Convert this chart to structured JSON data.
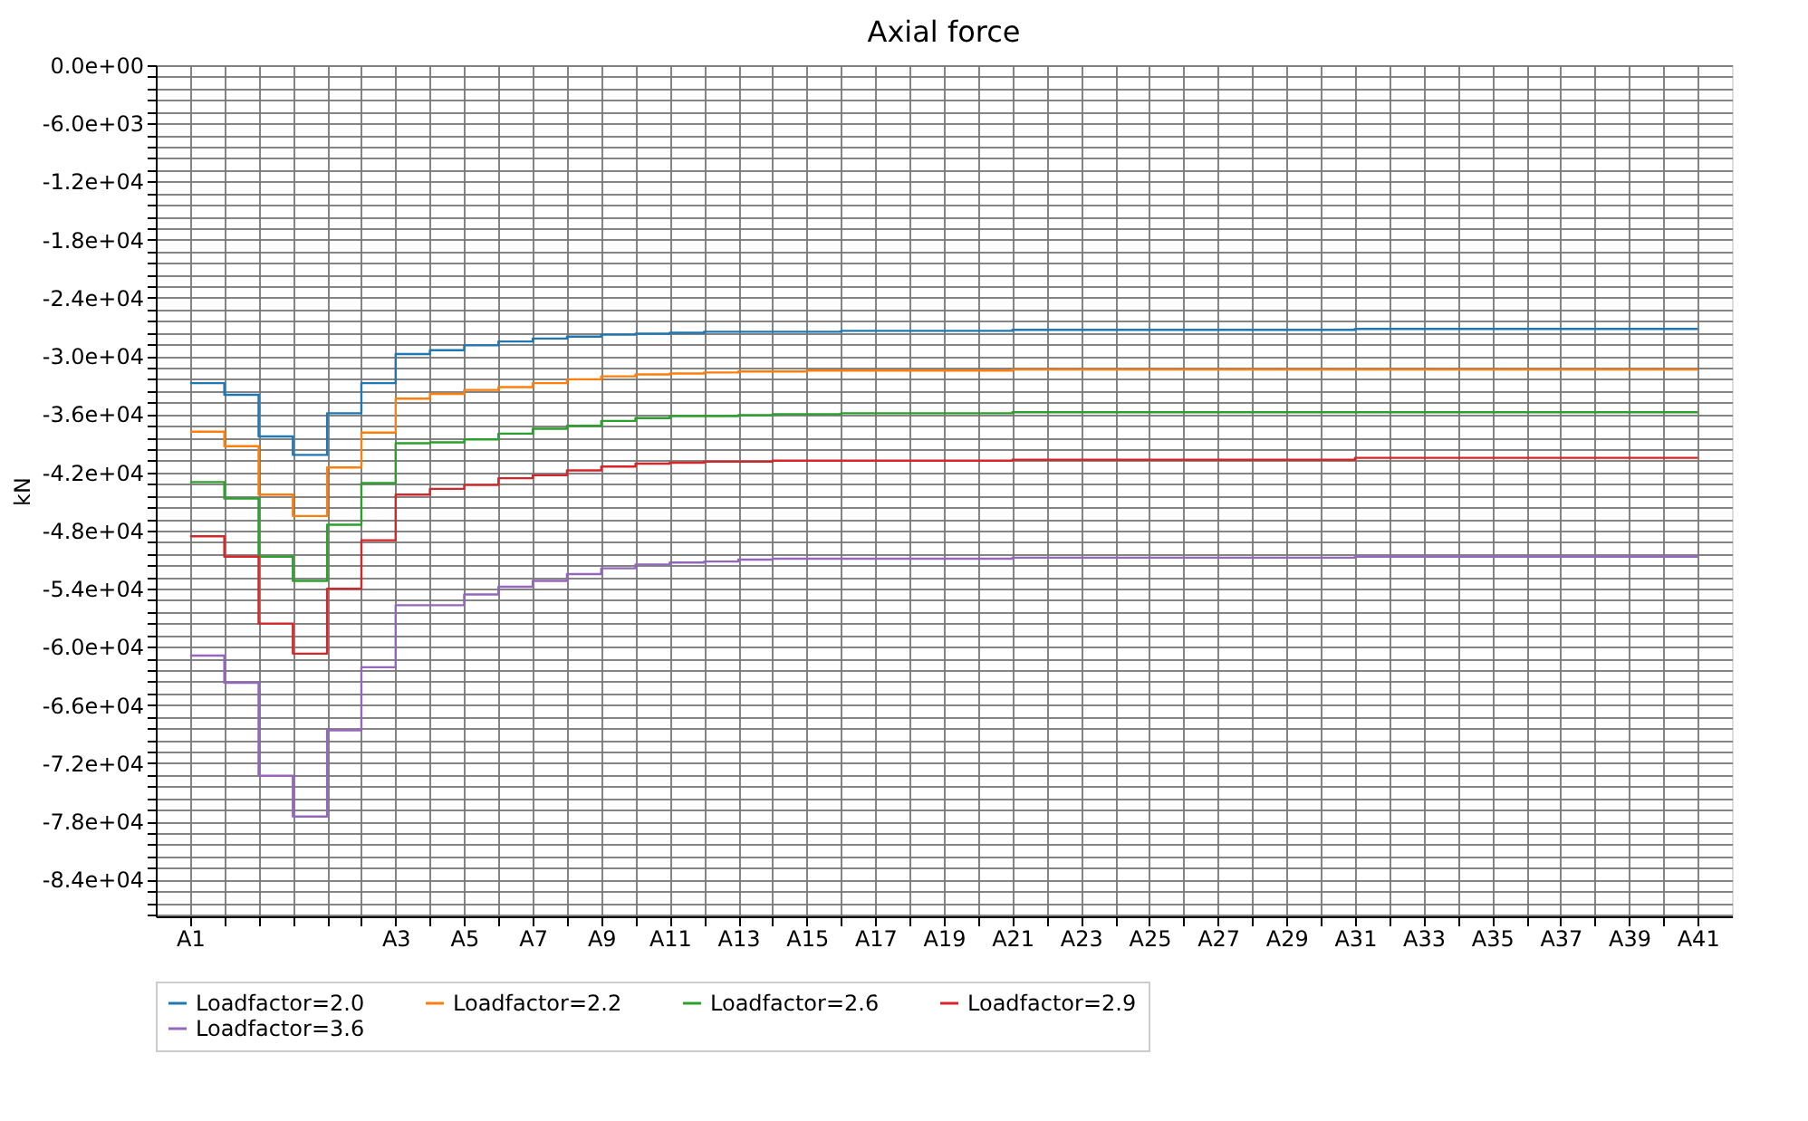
{
  "chart_data": {
    "type": "step",
    "title": "Axial force",
    "ylabel": "kN",
    "categories": [
      "A1",
      null,
      null,
      null,
      null,
      null,
      "A3",
      null,
      "A5",
      null,
      "A7",
      null,
      "A9",
      null,
      "A11",
      null,
      "A13",
      null,
      "A15",
      null,
      "A17",
      null,
      "A19",
      null,
      "A21",
      null,
      "A23",
      null,
      "A25",
      null,
      "A27",
      null,
      "A29",
      null,
      "A31",
      null,
      "A33",
      null,
      "A35",
      null,
      "A37",
      null,
      "A39",
      null,
      "A41"
    ],
    "series": [
      {
        "name": "Loadfactor=2.0",
        "color": "#1f77b4",
        "values": [
          -32800,
          -34000,
          -38300,
          -40200,
          -35900,
          -32800,
          -29800,
          -29400,
          -28900,
          -28500,
          -28200,
          -28000,
          -27800,
          -27700,
          -27600,
          -27500,
          -27500,
          -27500,
          -27500,
          -27400,
          -27400,
          -27400,
          -27400,
          -27400,
          -27300,
          -27300,
          -27300,
          -27300,
          -27300,
          -27300,
          -27300,
          -27300,
          -27300,
          -27300,
          -27200,
          -27200,
          -27200,
          -27200,
          -27200,
          -27200,
          -27200,
          -27200,
          -27200,
          -27200,
          -27200
        ]
      },
      {
        "name": "Loadfactor=2.2",
        "color": "#ff7f0e",
        "values": [
          -37800,
          -39300,
          -44300,
          -46500,
          -41500,
          -37900,
          -34400,
          -33900,
          -33500,
          -33200,
          -32800,
          -32400,
          -32100,
          -31900,
          -31800,
          -31700,
          -31600,
          -31600,
          -31500,
          -31500,
          -31500,
          -31500,
          -31500,
          -31500,
          -31400,
          -31400,
          -31400,
          -31400,
          -31400,
          -31400,
          -31400,
          -31400,
          -31400,
          -31400,
          -31400,
          -31400,
          -31400,
          -31400,
          -31400,
          -31400,
          -31400,
          -31400,
          -31400,
          -31400,
          -31400
        ]
      },
      {
        "name": "Loadfactor=2.6",
        "color": "#2ca02c",
        "values": [
          -43000,
          -44700,
          -50700,
          -53200,
          -47400,
          -43100,
          -39000,
          -38900,
          -38600,
          -38000,
          -37500,
          -37200,
          -36700,
          -36400,
          -36200,
          -36200,
          -36100,
          -36000,
          -36000,
          -35900,
          -35900,
          -35900,
          -35900,
          -35900,
          -35800,
          -35800,
          -35800,
          -35800,
          -35800,
          -35800,
          -35800,
          -35800,
          -35800,
          -35800,
          -35800,
          -35800,
          -35800,
          -35800,
          -35800,
          -35800,
          -35800,
          -35800,
          -35800,
          -35800,
          -35800
        ]
      },
      {
        "name": "Loadfactor=2.9",
        "color": "#d62728",
        "values": [
          -48600,
          -50700,
          -57600,
          -60700,
          -54000,
          -49000,
          -44300,
          -43700,
          -43300,
          -42600,
          -42300,
          -41800,
          -41400,
          -41100,
          -41000,
          -40900,
          -40900,
          -40800,
          -40800,
          -40800,
          -40800,
          -40800,
          -40800,
          -40800,
          -40700,
          -40700,
          -40700,
          -40700,
          -40700,
          -40700,
          -40700,
          -40700,
          -40700,
          -40700,
          -40500,
          -40500,
          -40500,
          -40500,
          -40500,
          -40500,
          -40500,
          -40500,
          -40500,
          -40500,
          -40500
        ]
      },
      {
        "name": "Loadfactor=3.6",
        "color": "#9467bd",
        "values": [
          -60900,
          -63700,
          -73300,
          -77500,
          -68600,
          -62100,
          -55700,
          -55700,
          -54600,
          -53800,
          -53200,
          -52500,
          -51900,
          -51500,
          -51300,
          -51200,
          -51000,
          -50900,
          -50900,
          -50900,
          -50900,
          -50900,
          -50900,
          -50900,
          -50800,
          -50800,
          -50800,
          -50800,
          -50800,
          -50800,
          -50800,
          -50800,
          -50800,
          -50800,
          -50700,
          -50700,
          -50700,
          -50700,
          -50700,
          -50700,
          -50700,
          -50700,
          -50700,
          -50700,
          -50700
        ]
      }
    ],
    "ylim": [
      -87800,
      0
    ],
    "yticks": [
      {
        "value": 0,
        "label": "0.0e+00"
      },
      {
        "value": -1200,
        "label": null
      },
      {
        "value": -2400,
        "label": null
      },
      {
        "value": -3600,
        "label": null
      },
      {
        "value": -4800,
        "label": null
      },
      {
        "value": -6000,
        "label": "-6.0e+03"
      },
      {
        "value": -7200,
        "label": null
      },
      {
        "value": -8400,
        "label": null
      },
      {
        "value": -9600,
        "label": null
      },
      {
        "value": -10800,
        "label": null
      },
      {
        "value": -12000,
        "label": "-1.2e+04"
      },
      {
        "value": -13200,
        "label": null
      },
      {
        "value": -14400,
        "label": null
      },
      {
        "value": -15600,
        "label": null
      },
      {
        "value": -16800,
        "label": null
      },
      {
        "value": -18000,
        "label": "-1.8e+04"
      },
      {
        "value": -19200,
        "label": null
      },
      {
        "value": -20400,
        "label": null
      },
      {
        "value": -21600,
        "label": null
      },
      {
        "value": -22800,
        "label": null
      },
      {
        "value": -24000,
        "label": "-2.4e+04"
      },
      {
        "value": -25200,
        "label": null
      },
      {
        "value": -26400,
        "label": null
      },
      {
        "value": -27600,
        "label": null
      },
      {
        "value": -28800,
        "label": null
      },
      {
        "value": -30000,
        "label": "-3.0e+04"
      },
      {
        "value": -31200,
        "label": null
      },
      {
        "value": -32400,
        "label": null
      },
      {
        "value": -33600,
        "label": null
      },
      {
        "value": -34800,
        "label": null
      },
      {
        "value": -36000,
        "label": "-3.6e+04"
      },
      {
        "value": -37200,
        "label": null
      },
      {
        "value": -38400,
        "label": null
      },
      {
        "value": -39600,
        "label": null
      },
      {
        "value": -40800,
        "label": null
      },
      {
        "value": -42000,
        "label": "-4.2e+04"
      },
      {
        "value": -43200,
        "label": null
      },
      {
        "value": -44400,
        "label": null
      },
      {
        "value": -45600,
        "label": null
      },
      {
        "value": -46800,
        "label": null
      },
      {
        "value": -48000,
        "label": "-4.8e+04"
      },
      {
        "value": -49200,
        "label": null
      },
      {
        "value": -50400,
        "label": null
      },
      {
        "value": -51600,
        "label": null
      },
      {
        "value": -52800,
        "label": null
      },
      {
        "value": -54000,
        "label": "-5.4e+04"
      },
      {
        "value": -55200,
        "label": null
      },
      {
        "value": -56400,
        "label": null
      },
      {
        "value": -57600,
        "label": null
      },
      {
        "value": -58800,
        "label": null
      },
      {
        "value": -60000,
        "label": "-6.0e+04"
      },
      {
        "value": -61200,
        "label": null
      },
      {
        "value": -62400,
        "label": null
      },
      {
        "value": -63600,
        "label": null
      },
      {
        "value": -64800,
        "label": null
      },
      {
        "value": -66000,
        "label": "-6.6e+04"
      },
      {
        "value": -67200,
        "label": null
      },
      {
        "value": -68400,
        "label": null
      },
      {
        "value": -69600,
        "label": null
      },
      {
        "value": -70800,
        "label": null
      },
      {
        "value": -72000,
        "label": "-7.2e+04"
      },
      {
        "value": -73200,
        "label": null
      },
      {
        "value": -74400,
        "label": null
      },
      {
        "value": -75600,
        "label": null
      },
      {
        "value": -76800,
        "label": null
      },
      {
        "value": -78000,
        "label": "-7.8e+04"
      },
      {
        "value": -79200,
        "label": null
      },
      {
        "value": -80400,
        "label": null
      },
      {
        "value": -81600,
        "label": null
      },
      {
        "value": -82800,
        "label": null
      },
      {
        "value": -84000,
        "label": "-8.4e+04"
      },
      {
        "value": -85200,
        "label": null
      },
      {
        "value": -86400,
        "label": null
      },
      {
        "value": -87600,
        "label": null
      }
    ],
    "grid": true,
    "legend": "bottom"
  }
}
